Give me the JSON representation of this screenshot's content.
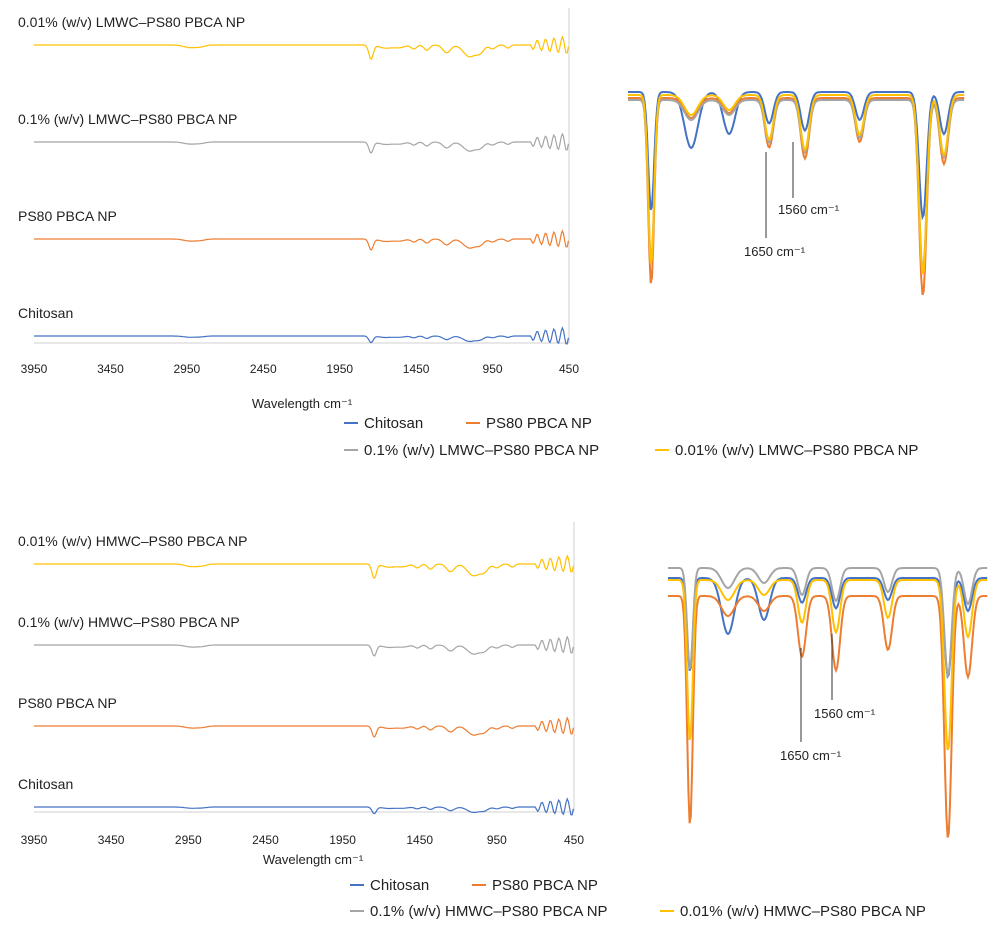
{
  "colors": {
    "chitosan": "#4472C4",
    "ps80": "#ED7D31",
    "mid": "#A5A5A5",
    "low": "#FFC000",
    "axis": "#d0d0d0",
    "anno_line": "#333333"
  },
  "chart_data": [
    {
      "type": "line",
      "panel": "LMWC spectra",
      "title": "",
      "xlabel": "Wavelength cm⁻¹",
      "ylabel": "",
      "x_ticks": [
        "3950",
        "3450",
        "2950",
        "2450",
        "1950",
        "1450",
        "950",
        "450"
      ],
      "xlim": [
        3950,
        450
      ],
      "x_reversed": true,
      "grid": false,
      "legend_position": "bottom",
      "legend": [
        "Chitosan",
        "PS80 PBCA NP",
        "0.1% (w/v) LMWC–PS80 PBCA NP",
        "0.01% (w/v) LMWC–PS80 PBCA NP"
      ],
      "series": [
        {
          "name": "Chitosan",
          "color_key": "chitosan",
          "trace_label": "Chitosan",
          "offset": 0
        },
        {
          "name": "PS80 PBCA NP",
          "color_key": "ps80",
          "trace_label": "PS80 PBCA NP",
          "offset": 1
        },
        {
          "name": "0.1% (w/v) LMWC–PS80 PBCA NP",
          "color_key": "mid",
          "trace_label": "0.1% (w/v) LMWC–PS80 PBCA NP",
          "offset": 2
        },
        {
          "name": "0.01% (w/v) LMWC–PS80 PBCA NP",
          "color_key": "low",
          "trace_label": "0.01% (w/v) LMWC–PS80 PBCA NP",
          "offset": 3
        }
      ]
    },
    {
      "type": "line",
      "panel": "LMWC zoom",
      "annotations": [
        "1560 cm⁻¹",
        "1650 cm⁻¹"
      ]
    },
    {
      "type": "line",
      "panel": "HMWC spectra",
      "title": "",
      "xlabel": "Wavelength cm⁻¹",
      "ylabel": "",
      "x_ticks": [
        "3950",
        "3450",
        "2950",
        "2450",
        "1950",
        "1450",
        "950",
        "450"
      ],
      "xlim": [
        3950,
        450
      ],
      "x_reversed": true,
      "grid": false,
      "legend_position": "bottom",
      "legend": [
        "Chitosan",
        "PS80 PBCA NP",
        "0.1% (w/v) HMWC–PS80 PBCA NP",
        "0.01% (w/v) HMWC–PS80 PBCA NP"
      ],
      "series": [
        {
          "name": "Chitosan",
          "color_key": "chitosan",
          "trace_label": "Chitosan",
          "offset": 0
        },
        {
          "name": "PS80 PBCA NP",
          "color_key": "ps80",
          "trace_label": "PS80 PBCA NP",
          "offset": 1
        },
        {
          "name": "0.1% (w/v) HMWC–PS80 PBCA NP",
          "color_key": "mid",
          "trace_label": "0.1% (w/v) HMWC–PS80 PBCA NP",
          "offset": 2
        },
        {
          "name": "0.01% (w/v) HMWC–PS80 PBCA NP",
          "color_key": "low",
          "trace_label": "0.01% (w/v) HMWC–PS80 PBCA NP",
          "offset": 3
        }
      ]
    },
    {
      "type": "line",
      "panel": "HMWC zoom",
      "annotations": [
        "1560 cm⁻¹",
        "1650 cm⁻¹"
      ]
    }
  ]
}
